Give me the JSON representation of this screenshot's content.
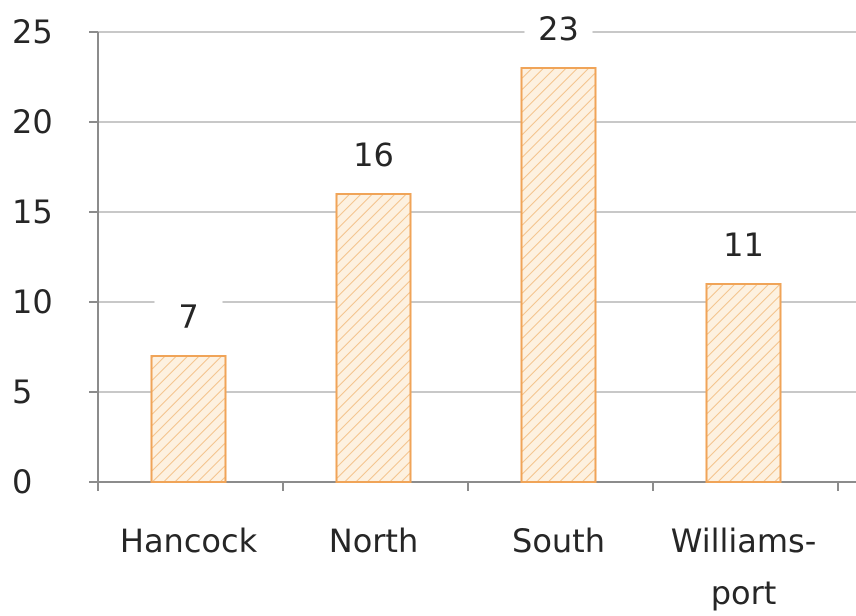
{
  "chart_data": {
    "type": "bar",
    "categories": [
      "Hancock",
      "North",
      "South",
      "Williams-\nport"
    ],
    "values": [
      7,
      16,
      23,
      11
    ],
    "data_labels": [
      "7",
      "16",
      "23",
      "11"
    ],
    "title": "",
    "xlabel": "",
    "ylabel": "",
    "ylim": [
      0,
      25
    ],
    "yticks": [
      "0",
      "5",
      "10",
      "15",
      "20",
      "25"
    ],
    "grid": true,
    "legend": "none",
    "colors": {
      "bar_fill": "#fdf1e0",
      "bar_hatch": "#f3c28a",
      "bar_stroke": "#f0a458",
      "gridline": "#c8c8c8",
      "axis": "#8c8c8c"
    }
  }
}
